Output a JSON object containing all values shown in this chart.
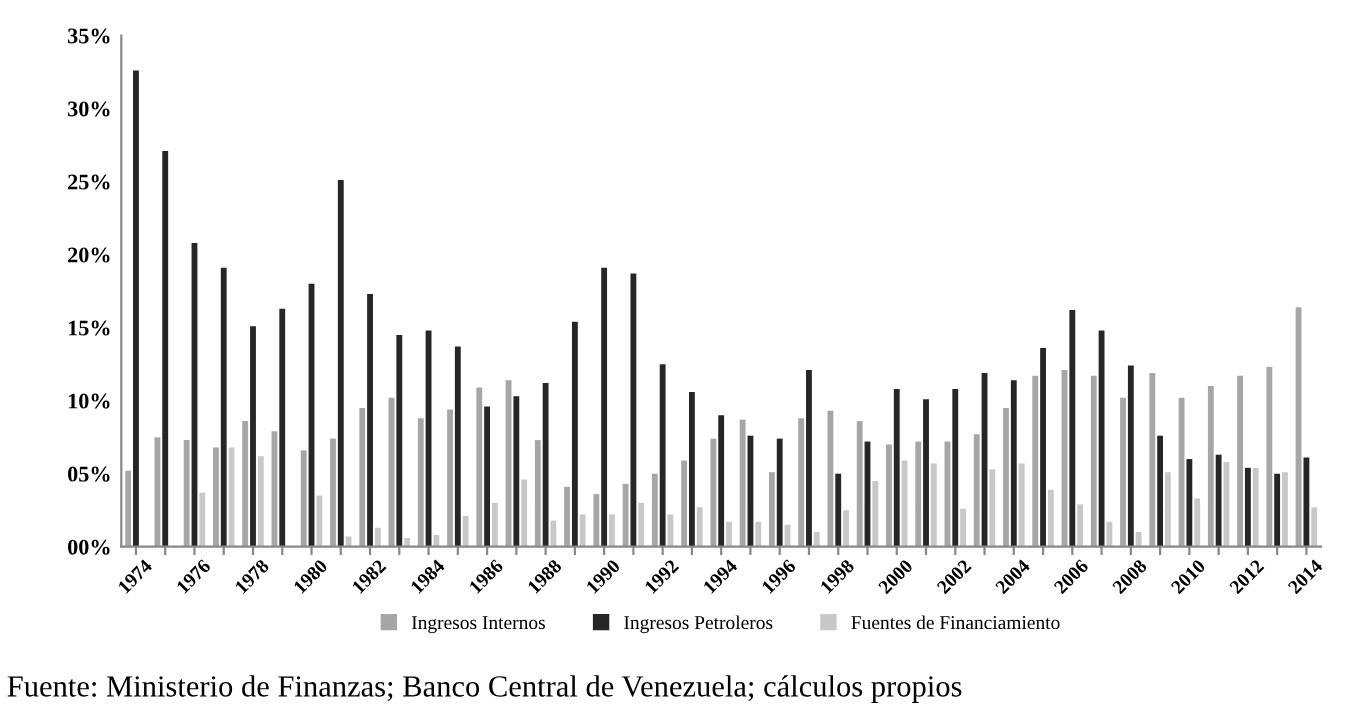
{
  "chart_data": {
    "type": "bar",
    "categories": [
      "1974",
      null,
      "1976",
      null,
      "1978",
      null,
      "1980",
      null,
      "1982",
      null,
      "1984",
      null,
      "1986",
      null,
      "1988",
      null,
      "1990",
      null,
      "1992",
      null,
      "1994",
      null,
      "1996",
      null,
      "1998",
      null,
      "2000",
      null,
      "2002",
      null,
      "2004",
      null,
      "2006",
      null,
      "2008",
      null,
      "2010",
      null,
      "2012",
      null,
      "2014"
    ],
    "series": [
      {
        "name": "Ingresos Internos",
        "color": "#a6a6a6",
        "values": [
          5.2,
          7.5,
          7.3,
          6.8,
          8.6,
          7.9,
          6.6,
          7.4,
          9.5,
          10.2,
          8.8,
          9.4,
          10.9,
          11.4,
          7.3,
          4.1,
          3.6,
          4.3,
          5.0,
          5.9,
          7.4,
          8.7,
          5.1,
          8.8,
          9.3,
          8.6,
          7.0,
          7.2,
          7.2,
          7.7,
          9.5,
          11.7,
          12.1,
          11.7,
          10.2,
          11.9,
          10.2,
          11.0,
          11.7,
          12.3,
          16.4
        ]
      },
      {
        "name": "Ingresos Petroleros",
        "color": "#262626",
        "values": [
          32.6,
          27.1,
          20.8,
          19.1,
          15.1,
          16.3,
          18.0,
          25.1,
          17.3,
          14.5,
          14.8,
          13.7,
          9.6,
          10.3,
          11.2,
          15.4,
          19.1,
          18.7,
          12.5,
          10.6,
          9.0,
          7.6,
          7.4,
          12.1,
          5.0,
          7.2,
          10.8,
          10.1,
          10.8,
          11.9,
          11.4,
          13.6,
          16.2,
          14.8,
          12.4,
          7.6,
          6.0,
          6.3,
          5.4,
          5.0,
          6.1
        ]
      },
      {
        "name": "Fuentes de Financiamiento",
        "color": "#c8c8c8",
        "values": [
          null,
          null,
          3.7,
          6.8,
          6.2,
          null,
          3.5,
          0.7,
          1.3,
          0.6,
          0.8,
          2.1,
          3.0,
          4.6,
          1.8,
          2.2,
          2.2,
          3.0,
          2.2,
          2.7,
          1.7,
          1.7,
          1.5,
          1.0,
          2.5,
          4.5,
          5.9,
          5.7,
          2.6,
          5.3,
          5.7,
          3.9,
          2.9,
          1.7,
          1.0,
          5.1,
          3.3,
          5.8,
          5.4,
          5.1,
          2.7
        ]
      }
    ],
    "ylim": [
      0,
      35
    ],
    "yticks": [
      {
        "value": 0,
        "label": "00%"
      },
      {
        "value": 5,
        "label": "05%"
      },
      {
        "value": 10,
        "label": "10%"
      },
      {
        "value": 15,
        "label": "15%"
      },
      {
        "value": 20,
        "label": "20%"
      },
      {
        "value": 25,
        "label": "25%"
      },
      {
        "value": 30,
        "label": "30%"
      },
      {
        "value": 35,
        "label": "35%"
      }
    ],
    "grid": false,
    "legend": "bottom",
    "annotations": [
      "Fuente: Ministerio de Finanzas; Banco Central de Venezuela; cálculos propios"
    ]
  }
}
